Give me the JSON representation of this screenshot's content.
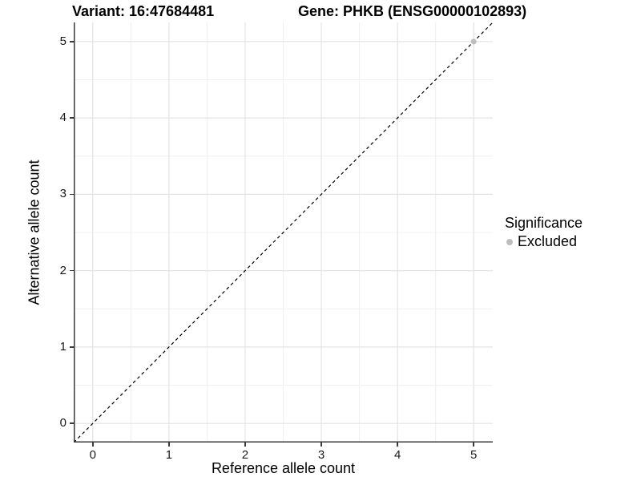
{
  "titles": {
    "variant": "Variant: 16:47684481",
    "gene": "Gene: PHKB (ENSG00000102893)"
  },
  "legend": {
    "title": "Significance",
    "items": [
      {
        "label": "Excluded",
        "color": "#bdbdbd"
      }
    ]
  },
  "colors": {
    "background": "#ffffff",
    "axis_line": "#3a3a3a",
    "tick_mark": "#3a3a3a",
    "tick_label": "#1a1a1a",
    "title_text": "#000000"
  },
  "chart_data": {
    "type": "scatter",
    "title": "Variant: 16:47684481   Gene: PHKB (ENSG00000102893)",
    "xlabel": "Reference allele count",
    "ylabel": "Alternative allele count",
    "xlim": [
      -0.25,
      5.25
    ],
    "ylim": [
      -0.25,
      5.25
    ],
    "x_ticks": [
      0,
      1,
      2,
      3,
      4,
      5
    ],
    "y_ticks": [
      0,
      1,
      2,
      3,
      4,
      5
    ],
    "grid": {
      "major": [
        0,
        1,
        2,
        3,
        4,
        5
      ],
      "minor": [
        0.5,
        1.5,
        2.5,
        3.5,
        4.5
      ],
      "major_color": "#e3e3e3",
      "minor_color": "#f0f0f0"
    },
    "series": [
      {
        "name": "Excluded",
        "color": "#bdbdbd",
        "point_radius": 3.5,
        "points": [
          [
            5,
            5
          ]
        ]
      }
    ],
    "reference_line": {
      "type": "abline",
      "slope": 1,
      "intercept": 0,
      "style": "dashed",
      "dash": "4,3.5",
      "color": "#000000",
      "width": 1.2
    },
    "legend_position": "right",
    "legend_title": "Significance"
  }
}
